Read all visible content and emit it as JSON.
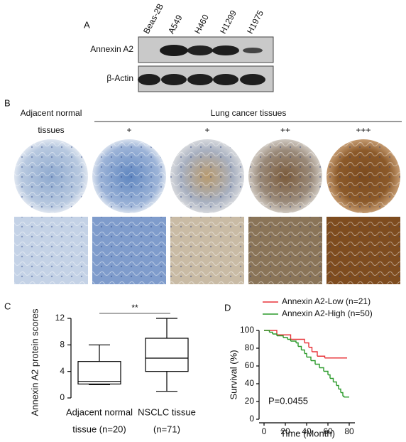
{
  "panels": {
    "a": {
      "label": "A",
      "lanes": [
        "Beas-2B",
        "A549",
        "H460",
        "H1299",
        "H1975"
      ],
      "rows": [
        "Annexin A2",
        "β-Actin"
      ]
    },
    "b": {
      "label": "B",
      "normal": [
        "Adjacent normal",
        "tissues"
      ],
      "cancer": "Lung cancer tissues",
      "grades": [
        "+",
        "+",
        "++",
        "+++"
      ]
    },
    "c": {
      "label": "C"
    },
    "d": {
      "label": "D"
    }
  },
  "chart_data": [
    {
      "type": "box",
      "ylabel": "Annexin A2 protein scores",
      "categories": [
        [
          "Adjacent normal",
          "tissue  (n=20)"
        ],
        [
          "NSCLC tissue",
          "(n=71)"
        ]
      ],
      "min": [
        2,
        1
      ],
      "q1": [
        2.1,
        4
      ],
      "median": [
        2.5,
        6
      ],
      "q3": [
        5.5,
        9
      ],
      "max": [
        8,
        12
      ],
      "ylim": [
        0,
        12
      ],
      "yticks": [
        0,
        4,
        8,
        12
      ],
      "annotation": "**",
      "color": "#000000"
    },
    {
      "type": "line",
      "step": true,
      "ylabel": "Survival (%)",
      "xlabel": "Time (Month)",
      "annotation": "P=0.0455",
      "series": [
        {
          "name": "Annexin A2-Low (n=21)",
          "color": "#e8343a",
          "x": [
            0,
            12,
            25,
            38,
            42,
            45,
            50,
            57,
            78
          ],
          "values": [
            100,
            95,
            90,
            86,
            81,
            76,
            71,
            69,
            69
          ]
        },
        {
          "name": "Annexin A2-High (n=50)",
          "color": "#2a9a2a",
          "x": [
            0,
            5,
            8,
            12,
            18,
            22,
            25,
            30,
            32,
            35,
            38,
            40,
            44,
            48,
            52,
            56,
            60,
            62,
            65,
            68,
            70,
            72,
            74,
            75,
            80
          ],
          "values": [
            100,
            98,
            96,
            94,
            92,
            90,
            88,
            86,
            82,
            78,
            74,
            70,
            66,
            62,
            58,
            54,
            50,
            46,
            42,
            38,
            34,
            30,
            26,
            25,
            25
          ]
        }
      ],
      "xlim": [
        0,
        82
      ],
      "xticks": [
        0,
        20,
        40,
        60,
        80
      ],
      "ylim": [
        0,
        100
      ],
      "yticks": [
        0,
        20,
        40,
        60,
        80,
        100
      ]
    }
  ]
}
